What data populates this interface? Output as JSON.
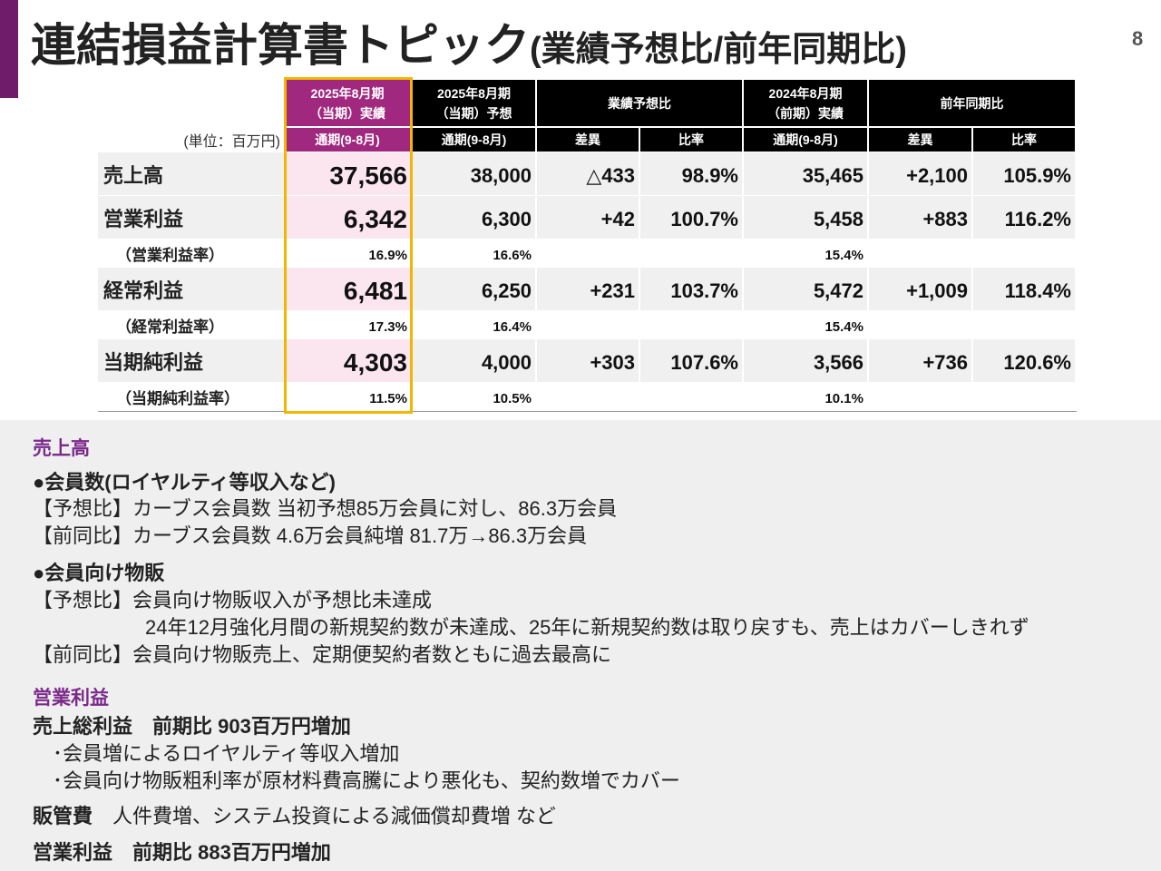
{
  "header": {
    "title": "連結損益計算書トピック",
    "title_suffix": "(業績予想比/前年同期比)",
    "page": "8"
  },
  "table": {
    "unit": "(単位：百万円)",
    "header_top": [
      [
        "2025年8月期",
        "（当期）実績"
      ],
      [
        "2025年8月期",
        "（当期）予想"
      ],
      [
        "業績予想比"
      ],
      [
        "2024年8月期",
        "（前期）実績"
      ],
      [
        "前年同期比"
      ]
    ],
    "header_sub": [
      "通期(9-8月)",
      "通期(9-8月)",
      "差異",
      "比率",
      "通期(9-8月)",
      "差異",
      "比率"
    ],
    "rows": [
      {
        "label": "売上高",
        "cells": [
          "37,566",
          "38,000",
          "△433",
          "98.9%",
          "35,465",
          "+2,100",
          "105.9%"
        ]
      },
      {
        "label": "営業利益",
        "cells": [
          "6,342",
          "6,300",
          "+42",
          "100.7%",
          "5,458",
          "+883",
          "116.2%"
        ]
      },
      {
        "label": "（営業利益率）",
        "cells": [
          "16.9%",
          "16.6%",
          "15.4%"
        ]
      },
      {
        "label": "経常利益",
        "cells": [
          "6,481",
          "6,250",
          "+231",
          "103.7%",
          "5,472",
          "+1,009",
          "118.4%"
        ]
      },
      {
        "label": "（経常利益率）",
        "cells": [
          "17.3%",
          "16.4%",
          "15.4%"
        ]
      },
      {
        "label": "当期純利益",
        "cells": [
          "4,303",
          "4,000",
          "+303",
          "107.6%",
          "3,566",
          "+736",
          "120.6%"
        ]
      },
      {
        "label": "（当期純利益率）",
        "cells": [
          "11.5%",
          "10.5%",
          "10.1%"
        ]
      }
    ]
  },
  "notes": {
    "sales": {
      "heading": "売上高",
      "members": {
        "title": "●会員数(ロイヤルティ等収入など)",
        "lines": [
          [
            "【予想比】",
            "カーブス会員数 当初予想85万会員に対し、86.3万会員"
          ],
          [
            "【前同比】",
            "カーブス会員数 4.6万会員純増 81.7万→86.3万会員"
          ]
        ]
      },
      "goods": {
        "title": "●会員向け物販",
        "lines": [
          [
            "【予想比】",
            "会員向け物販収入が予想比未達成"
          ],
          [
            "24年12月強化月間の新規契約数が未達成、25年に新規契約数は取り戻すも、売上はカバーしきれず"
          ],
          [
            "【前同比】",
            "会員向け物販売上、定期便契約者数ともに過去最高に"
          ]
        ]
      }
    },
    "op": {
      "heading": "営業利益",
      "gross": "売上総利益　前期比 903百万円増加",
      "gross_items": [
        "･会員増によるロイヤルティ等収入増加",
        "･会員向け物販粗利率が原材料費高騰により悪化も、契約数増でカバー"
      ],
      "sga": [
        "販管費",
        "人件費増、システム投資による減価償却費増 など"
      ],
      "result": "営業利益　前期比 883百万円増加"
    }
  }
}
